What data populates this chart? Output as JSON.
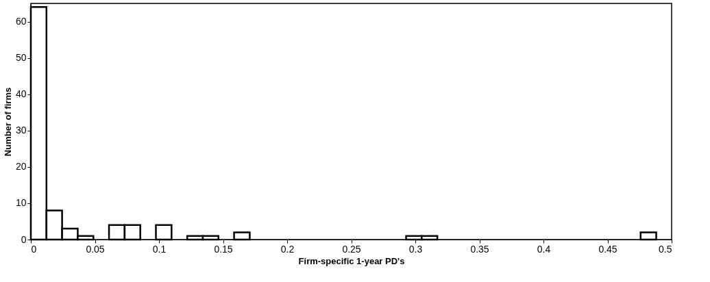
{
  "chart_data": {
    "type": "histogram",
    "xlabel": "Firm-specific 1-year PD's",
    "ylabel": "Number of firms",
    "bins": [
      0,
      0.0122,
      0.0244,
      0.0366,
      0.0488,
      0.061,
      0.0732,
      0.0854,
      0.0976,
      0.1098,
      0.122,
      0.1342,
      0.1464,
      0.1586,
      0.1708,
      0.183,
      0.1952,
      0.2074,
      0.2196,
      0.2318,
      0.244,
      0.2562,
      0.2684,
      0.2806,
      0.2928,
      0.305,
      0.3172,
      0.3294,
      0.3416,
      0.3538,
      0.366,
      0.3782,
      0.3904,
      0.4026,
      0.4148,
      0.427,
      0.4392,
      0.4514,
      0.4636,
      0.4758,
      0.488
    ],
    "values": [
      64,
      8,
      3,
      1,
      0,
      4,
      4,
      0,
      4,
      0,
      1,
      1,
      0,
      2,
      0,
      0,
      0,
      0,
      0,
      0,
      0,
      0,
      0,
      0,
      1,
      1,
      0,
      0,
      0,
      0,
      0,
      0,
      0,
      0,
      0,
      0,
      0,
      0,
      0,
      2
    ],
    "color": "#ffffff",
    "xlim": [
      0,
      0.5
    ],
    "xticks": [
      0,
      0.05,
      0.1,
      0.15,
      0.2,
      0.25,
      0.3,
      0.35,
      0.4,
      0.45,
      0.5
    ],
    "ylim": [
      0,
      65
    ],
    "yticks": [
      0,
      10,
      20,
      30,
      40,
      50,
      60
    ],
    "grid": false
  }
}
